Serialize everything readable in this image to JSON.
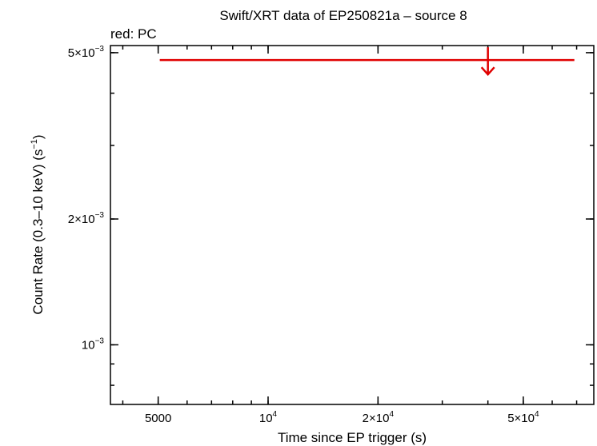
{
  "chart_data": {
    "type": "scatter",
    "title": "Swift/XRT data of EP250821a – source 8",
    "subtitle": "red: PC",
    "xlabel": "Time since EP trigger (s)",
    "ylabel": {
      "main": "Count Rate (0.3–10 keV) (s",
      "sup": "−1",
      "end": ")"
    },
    "x_scale": "log",
    "y_scale": "log",
    "xlim": [
      3700,
      78000
    ],
    "ylim": [
      0.00072,
      0.0052
    ],
    "x_ticks": [
      {
        "value": 5000,
        "mant": "5000",
        "exp": ""
      },
      {
        "value": 10000,
        "mant": "10",
        "exp": "4"
      },
      {
        "value": 20000,
        "mant": "2×10",
        "exp": "4"
      },
      {
        "value": 50000,
        "mant": "5×10",
        "exp": "4"
      }
    ],
    "y_ticks": [
      {
        "value": 0.005,
        "mant": "5×10",
        "exp": "−3"
      },
      {
        "value": 0.002,
        "mant": "2×10",
        "exp": "−3"
      },
      {
        "value": 0.001,
        "mant": "10",
        "exp": "−3"
      }
    ],
    "series": [
      {
        "color": "#e00000",
        "points": [
          {
            "x": 40000,
            "x_low": 5050,
            "x_high": 69000,
            "y": 0.0048,
            "upper_limit": true
          }
        ]
      }
    ]
  }
}
